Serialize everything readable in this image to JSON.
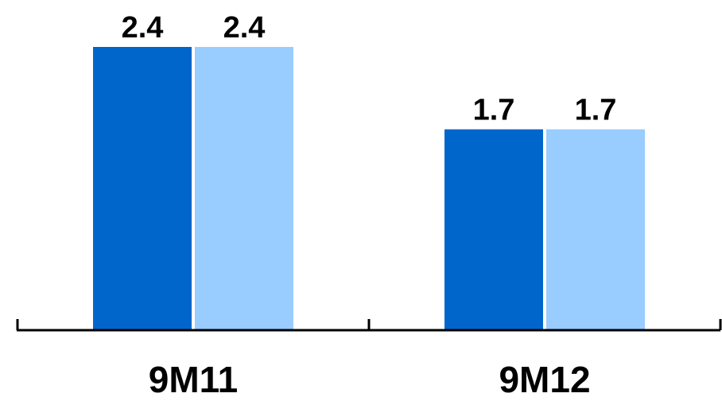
{
  "chart_data": {
    "type": "bar",
    "title": "",
    "xlabel": "",
    "ylabel": "",
    "categories": [
      "9M11",
      "9M12"
    ],
    "series": [
      {
        "values": [
          2.4,
          1.7
        ],
        "color": "#0066CC"
      },
      {
        "values": [
          2.4,
          1.7
        ],
        "color": "#99CCFF"
      }
    ],
    "value_labels": [
      [
        "2.4",
        "1.7"
      ],
      [
        "2.4",
        "1.7"
      ]
    ],
    "ylim": [
      0,
      2.4
    ],
    "grid": false,
    "legend": "none"
  }
}
